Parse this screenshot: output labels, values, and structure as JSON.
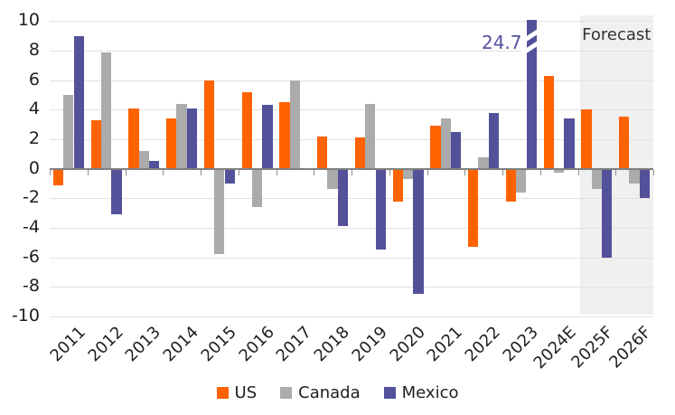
{
  "chart_data": {
    "type": "bar",
    "title": "",
    "xlabel": "",
    "ylabel": "",
    "ylim": [
      -10,
      10
    ],
    "ytick_step": 2,
    "ytick_labels": [
      "10",
      "8",
      "6",
      "4",
      "2",
      "0",
      "-2",
      "-4",
      "-6",
      "-8",
      "-10"
    ],
    "grid": true,
    "legend_position": "bottom",
    "categories": [
      "2011",
      "2012",
      "2013",
      "2014",
      "2015",
      "2016",
      "2017",
      "2018",
      "2019",
      "2020",
      "2021",
      "2022",
      "2023",
      "2024E",
      "2025F",
      "2026F"
    ],
    "series": [
      {
        "name": "US",
        "color": "#FF6200",
        "values": [
          -1.1,
          3.3,
          4.1,
          3.4,
          6.0,
          5.2,
          4.5,
          2.2,
          2.1,
          -2.2,
          2.9,
          -5.3,
          -2.2,
          6.3,
          4.0,
          3.5
        ]
      },
      {
        "name": "Canada",
        "color": "#ABABAB",
        "values": [
          5.0,
          7.9,
          1.2,
          4.4,
          -5.8,
          -2.6,
          6.0,
          -1.4,
          4.4,
          -0.7,
          3.4,
          0.8,
          -1.6,
          -0.3,
          -1.4,
          -1.0
        ]
      },
      {
        "name": "Mexico",
        "color": "#525199",
        "values": [
          9.0,
          -3.1,
          0.5,
          4.1,
          -1.0,
          4.3,
          -0.1,
          -3.9,
          -5.5,
          -8.5,
          2.5,
          3.8,
          24.7,
          3.4,
          -6.0,
          -2.0
        ]
      }
    ],
    "clipped_bar": {
      "series": "Mexico",
      "category": "2023",
      "true_value": 24.7,
      "clipped_at": 10
    },
    "annotation": {
      "text": "24.7"
    },
    "forecast": {
      "label": "Forecast",
      "categories": [
        "2025F",
        "2026F"
      ]
    }
  },
  "colors": {
    "us": "#FF6200",
    "canada": "#ABABAB",
    "mexico": "#525199",
    "gridline": "#e2e2e2",
    "zero_line": "#7f7f7f",
    "forecast_band": "#f0f0f0",
    "axis_text": "#1f1f1f",
    "annotation_text": "#5451a0"
  }
}
